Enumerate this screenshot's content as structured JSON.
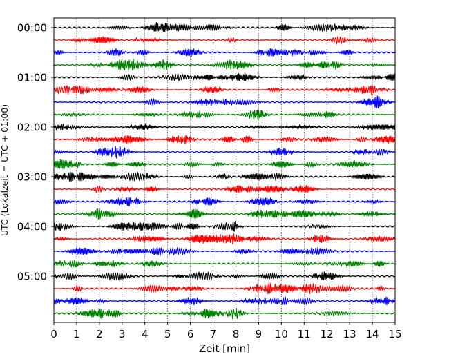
{
  "chart_data": {
    "type": "line",
    "xlabel": "Zeit  [min]",
    "ylabel": "UTC (Lokalzeit = UTC + 01:00)",
    "xlim": [
      0,
      15
    ],
    "x_ticks": [
      0,
      1,
      2,
      3,
      4,
      5,
      6,
      7,
      8,
      9,
      10,
      11,
      12,
      13,
      14,
      15
    ],
    "y_tick_labels": [
      "00:00",
      "01:00",
      "02:00",
      "03:00",
      "04:00",
      "05:00"
    ],
    "trace_count": 24,
    "trace_interval_min": 15,
    "colors": [
      "#000000",
      "#ff0000",
      "#0000ff",
      "#008000"
    ],
    "grid": "vertical-dotted"
  }
}
